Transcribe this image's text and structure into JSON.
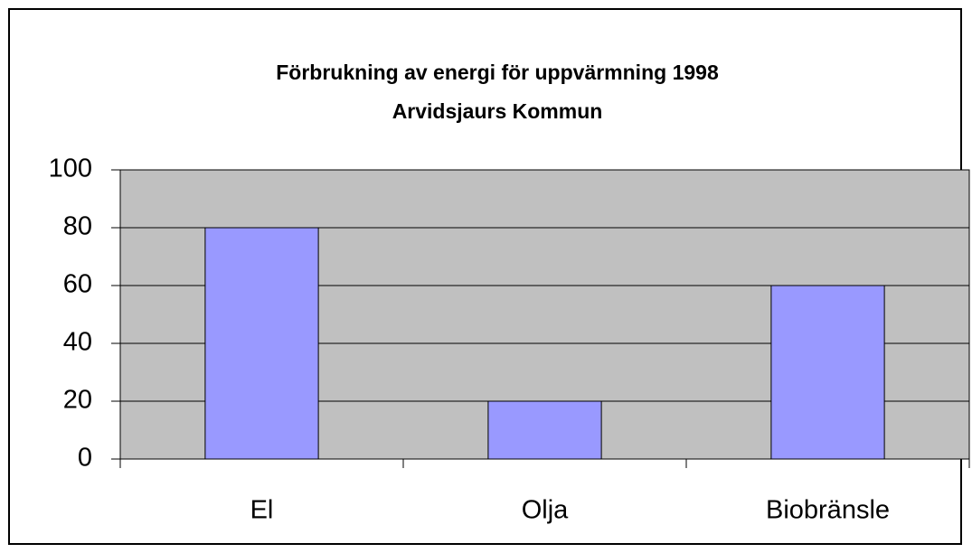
{
  "chart_data": {
    "type": "bar",
    "title": "Förbrukning av energi för uppvärmning 1998",
    "subtitle": "Arvidsjaurs Kommun",
    "categories": [
      "El",
      "Olja",
      "Biobränsle"
    ],
    "values": [
      80,
      20,
      60
    ],
    "color": "#9999ff",
    "plot_background": "#c0c0c0",
    "ylim": [
      0,
      100
    ],
    "yticks": [
      0,
      20,
      40,
      60,
      80,
      100
    ],
    "grid": true
  }
}
